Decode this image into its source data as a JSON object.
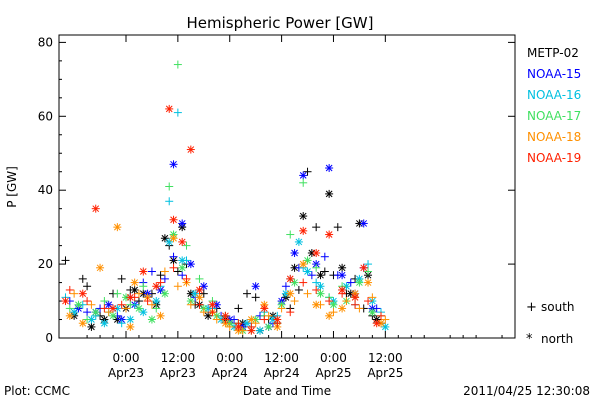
{
  "chart_data": {
    "type": "scatter",
    "title": "Hemispheric Power [GW]",
    "xlabel": "Date and Time",
    "ylabel": "P [GW]",
    "xlim_hours": [
      -15.5,
      90
    ],
    "ylim": [
      0,
      82
    ],
    "yticks": [
      0,
      20,
      40,
      60,
      80
    ],
    "xticks": [
      {
        "hour": 0,
        "label1": "0:00",
        "label2": "Apr23"
      },
      {
        "hour": 12,
        "label1": "12:00",
        "label2": "Apr23"
      },
      {
        "hour": 24,
        "label1": "0:00",
        "label2": "Apr24"
      },
      {
        "hour": 36,
        "label1": "12:00",
        "label2": "Apr24"
      },
      {
        "hour": 48,
        "label1": "0:00",
        "label2": "Apr25"
      },
      {
        "hour": 60,
        "label1": "12:00",
        "label2": "Apr25"
      }
    ],
    "x_unit": "hours since 2011-04-23 00:00",
    "grid": false,
    "legend_placement": "right",
    "series": [
      {
        "name": "METP-02",
        "color": "#000000",
        "south": [
          [
            -14,
            21
          ],
          [
            -10,
            16
          ],
          [
            -9,
            14
          ],
          [
            -6,
            6
          ],
          [
            -3,
            12
          ],
          [
            -1,
            16
          ],
          [
            1,
            13
          ],
          [
            3,
            10
          ],
          [
            6,
            12
          ],
          [
            8,
            17
          ],
          [
            10,
            25
          ],
          [
            12,
            18
          ],
          [
            14,
            20
          ],
          [
            16,
            9
          ],
          [
            18,
            12
          ],
          [
            21,
            8
          ],
          [
            24,
            4
          ],
          [
            26,
            8
          ],
          [
            28,
            12
          ],
          [
            30,
            11
          ],
          [
            33,
            5
          ],
          [
            35,
            4
          ],
          [
            38,
            8
          ],
          [
            40,
            13
          ],
          [
            42,
            45
          ],
          [
            44,
            30
          ],
          [
            46,
            18
          ],
          [
            48,
            17
          ],
          [
            49,
            30
          ],
          [
            51,
            12
          ],
          [
            53,
            16
          ],
          [
            55,
            8
          ],
          [
            57,
            6
          ],
          [
            59,
            4
          ]
        ],
        "north": [
          [
            -12,
            6
          ],
          [
            -8,
            3
          ],
          [
            -5,
            5
          ],
          [
            -2,
            5
          ],
          [
            0,
            8
          ],
          [
            2,
            13
          ],
          [
            4,
            12
          ],
          [
            7,
            9
          ],
          [
            9,
            27
          ],
          [
            11,
            21
          ],
          [
            13,
            30
          ],
          [
            15,
            12
          ],
          [
            17,
            9
          ],
          [
            19,
            6
          ],
          [
            23,
            5
          ],
          [
            27,
            4
          ],
          [
            31,
            2
          ],
          [
            34,
            6
          ],
          [
            37,
            11
          ],
          [
            39,
            19
          ],
          [
            41,
            33
          ],
          [
            43,
            23
          ],
          [
            45,
            17
          ],
          [
            47,
            39
          ],
          [
            50,
            19
          ],
          [
            52,
            12
          ],
          [
            54,
            31
          ],
          [
            56,
            17
          ],
          [
            58,
            5
          ]
        ]
      },
      {
        "name": "NOAA-15",
        "color": "#0000ff",
        "south": [
          [
            -13,
            10
          ],
          [
            -9,
            7
          ],
          [
            -6,
            8
          ],
          [
            -2,
            6
          ],
          [
            1,
            11
          ],
          [
            4,
            15
          ],
          [
            6,
            18
          ],
          [
            9,
            16
          ],
          [
            11,
            22
          ],
          [
            13,
            17
          ],
          [
            16,
            11
          ],
          [
            19,
            8
          ],
          [
            22,
            6
          ],
          [
            25,
            5
          ],
          [
            28,
            4
          ],
          [
            31,
            6
          ],
          [
            34,
            4
          ],
          [
            37,
            14
          ],
          [
            40,
            19
          ],
          [
            43,
            17
          ],
          [
            46,
            22
          ],
          [
            49,
            17
          ],
          [
            52,
            15
          ],
          [
            55,
            19
          ],
          [
            58,
            8
          ]
        ],
        "north": [
          [
            -11,
            8
          ],
          [
            -7,
            7
          ],
          [
            -4,
            9
          ],
          [
            -1,
            5
          ],
          [
            2,
            9
          ],
          [
            5,
            12
          ],
          [
            8,
            13
          ],
          [
            11,
            47
          ],
          [
            13,
            31
          ],
          [
            15,
            20
          ],
          [
            18,
            14
          ],
          [
            21,
            9
          ],
          [
            24,
            5
          ],
          [
            27,
            3
          ],
          [
            30,
            14
          ],
          [
            33,
            3
          ],
          [
            36,
            10
          ],
          [
            39,
            23
          ],
          [
            41,
            44
          ],
          [
            44,
            20
          ],
          [
            47,
            46
          ],
          [
            50,
            17
          ],
          [
            53,
            12
          ],
          [
            55,
            31
          ],
          [
            57,
            8
          ]
        ]
      },
      {
        "name": "NOAA-16",
        "color": "#00c0e0",
        "south": [
          [
            -14,
            11
          ],
          [
            -10,
            9
          ],
          [
            -7,
            6
          ],
          [
            -4,
            7
          ],
          [
            -1,
            4
          ],
          [
            2,
            9
          ],
          [
            5,
            11
          ],
          [
            8,
            14
          ],
          [
            10,
            37
          ],
          [
            12,
            61
          ],
          [
            14,
            21
          ],
          [
            17,
            13
          ],
          [
            20,
            8
          ],
          [
            23,
            6
          ],
          [
            26,
            4
          ],
          [
            29,
            3
          ],
          [
            32,
            7
          ],
          [
            35,
            6
          ],
          [
            38,
            16
          ],
          [
            41,
            19
          ],
          [
            44,
            15
          ],
          [
            47,
            11
          ],
          [
            50,
            13
          ],
          [
            53,
            9
          ],
          [
            56,
            20
          ],
          [
            59,
            7
          ]
        ],
        "north": [
          [
            -12,
            7
          ],
          [
            -8,
            5
          ],
          [
            -5,
            4
          ],
          [
            -2,
            8
          ],
          [
            1,
            5
          ],
          [
            4,
            7
          ],
          [
            7,
            10
          ],
          [
            10,
            26
          ],
          [
            13,
            21
          ],
          [
            16,
            12
          ],
          [
            19,
            8
          ],
          [
            22,
            5
          ],
          [
            25,
            3
          ],
          [
            28,
            4
          ],
          [
            31,
            2
          ],
          [
            34,
            5
          ],
          [
            37,
            12
          ],
          [
            40,
            26
          ],
          [
            42,
            18
          ],
          [
            45,
            14
          ],
          [
            48,
            10
          ],
          [
            51,
            14
          ],
          [
            54,
            16
          ],
          [
            57,
            10
          ],
          [
            60,
            3
          ]
        ]
      },
      {
        "name": "NOAA-17",
        "color": "#40e060",
        "south": [
          [
            -13,
            8
          ],
          [
            -9,
            5
          ],
          [
            -5,
            10
          ],
          [
            -2,
            12
          ],
          [
            1,
            9
          ],
          [
            4,
            14
          ],
          [
            7,
            8
          ],
          [
            10,
            41
          ],
          [
            12,
            74
          ],
          [
            14,
            25
          ],
          [
            17,
            16
          ],
          [
            20,
            10
          ],
          [
            23,
            6
          ],
          [
            26,
            4
          ],
          [
            29,
            2
          ],
          [
            32,
            6
          ],
          [
            35,
            4
          ],
          [
            38,
            28
          ],
          [
            41,
            42
          ],
          [
            44,
            19
          ],
          [
            47,
            11
          ],
          [
            50,
            14
          ],
          [
            53,
            11
          ],
          [
            56,
            18
          ],
          [
            59,
            6
          ]
        ],
        "north": [
          [
            -11,
            9
          ],
          [
            -7,
            7
          ],
          [
            -3,
            6
          ],
          [
            0,
            11
          ],
          [
            3,
            8
          ],
          [
            6,
            5
          ],
          [
            9,
            12
          ],
          [
            11,
            28
          ],
          [
            13,
            19
          ],
          [
            15,
            10
          ],
          [
            18,
            8
          ],
          [
            21,
            6
          ],
          [
            24,
            4
          ],
          [
            27,
            2
          ],
          [
            30,
            5
          ],
          [
            33,
            3
          ],
          [
            36,
            9
          ],
          [
            39,
            15
          ],
          [
            42,
            21
          ],
          [
            45,
            12
          ],
          [
            48,
            9
          ],
          [
            51,
            10
          ],
          [
            54,
            15
          ],
          [
            57,
            7
          ]
        ]
      },
      {
        "name": "NOAA-18",
        "color": "#ff9000",
        "south": [
          [
            -12,
            12
          ],
          [
            -8,
            9
          ],
          [
            -4,
            7
          ],
          [
            0,
            8
          ],
          [
            3,
            12
          ],
          [
            6,
            9
          ],
          [
            9,
            18
          ],
          [
            12,
            14
          ],
          [
            15,
            9
          ],
          [
            18,
            7
          ],
          [
            21,
            5
          ],
          [
            24,
            3
          ],
          [
            27,
            2
          ],
          [
            30,
            4
          ],
          [
            33,
            6
          ],
          [
            36,
            8
          ],
          [
            39,
            10
          ],
          [
            42,
            12
          ],
          [
            45,
            9
          ],
          [
            48,
            7
          ],
          [
            51,
            10
          ],
          [
            54,
            8
          ],
          [
            57,
            11
          ],
          [
            60,
            5
          ]
        ],
        "north": [
          [
            -13,
            6
          ],
          [
            -10,
            4
          ],
          [
            -6,
            19
          ],
          [
            -2,
            30
          ],
          [
            1,
            3
          ],
          [
            2,
            15
          ],
          [
            5,
            11
          ],
          [
            8,
            6
          ],
          [
            11,
            27
          ],
          [
            14,
            15
          ],
          [
            17,
            11
          ],
          [
            20,
            7
          ],
          [
            23,
            4
          ],
          [
            26,
            2
          ],
          [
            29,
            5
          ],
          [
            32,
            9
          ],
          [
            35,
            3
          ],
          [
            38,
            12
          ],
          [
            41,
            20
          ],
          [
            44,
            9
          ],
          [
            47,
            6
          ],
          [
            50,
            8
          ],
          [
            53,
            12
          ],
          [
            56,
            15
          ],
          [
            59,
            4
          ]
        ]
      },
      {
        "name": "NOAA-19",
        "color": "#ff2000",
        "south": [
          [
            -13,
            13
          ],
          [
            -9,
            10
          ],
          [
            -5,
            8
          ],
          [
            -1,
            9
          ],
          [
            2,
            11
          ],
          [
            5,
            10
          ],
          [
            8,
            15
          ],
          [
            11,
            19
          ],
          [
            14,
            16
          ],
          [
            17,
            9
          ],
          [
            20,
            7
          ],
          [
            23,
            5
          ],
          [
            26,
            4
          ],
          [
            29,
            3
          ],
          [
            32,
            5
          ],
          [
            35,
            4
          ],
          [
            38,
            7
          ],
          [
            41,
            15
          ],
          [
            44,
            13
          ],
          [
            47,
            10
          ],
          [
            50,
            12
          ],
          [
            53,
            9
          ],
          [
            56,
            10
          ],
          [
            59,
            6
          ]
        ],
        "north": [
          [
            -14,
            10
          ],
          [
            -10,
            12
          ],
          [
            -7,
            35
          ],
          [
            -3,
            8
          ],
          [
            1,
            11
          ],
          [
            4,
            18
          ],
          [
            7,
            14
          ],
          [
            10,
            62
          ],
          [
            11,
            32
          ],
          [
            15,
            51
          ],
          [
            13,
            26
          ],
          [
            17,
            13
          ],
          [
            20,
            9
          ],
          [
            23,
            6
          ],
          [
            26,
            3
          ],
          [
            29,
            2
          ],
          [
            32,
            8
          ],
          [
            35,
            5
          ],
          [
            38,
            16
          ],
          [
            41,
            29
          ],
          [
            44,
            23
          ],
          [
            47,
            28
          ],
          [
            50,
            13
          ],
          [
            53,
            11
          ],
          [
            55,
            19
          ],
          [
            58,
            4
          ]
        ]
      }
    ],
    "symbol_legend": [
      {
        "symbol": "+",
        "label": "south"
      },
      {
        "symbol": "*",
        "label": "north"
      }
    ]
  },
  "footer": {
    "left": "Plot: CCMC",
    "right": "2011/04/25 12:30:08"
  }
}
